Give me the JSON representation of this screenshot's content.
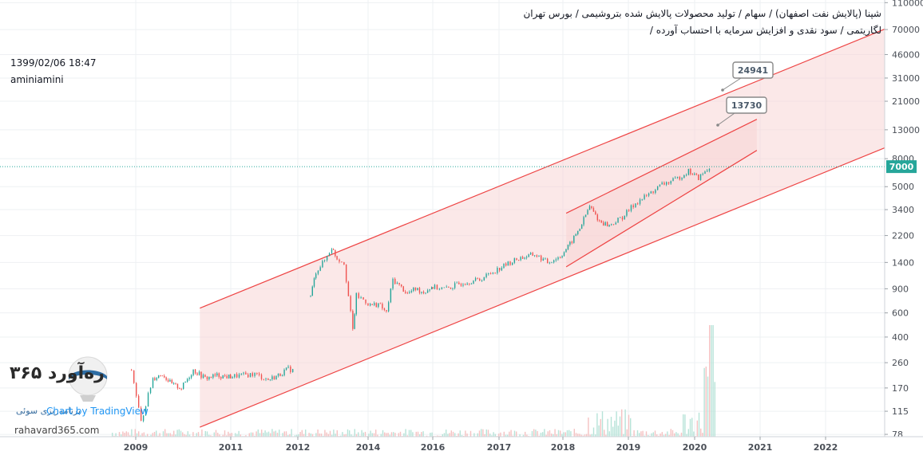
{
  "header": {
    "title_line1": "شپنا (پالایش نفت اصفهان) / سهام / تولید محصولات پالایش شده بتروشیمی / بورس تهران",
    "title_line2": "لگاریتمی / سود نقدی و افزایش سرمایه با احتساب آورده /",
    "datetime": "1399/02/06 18:47",
    "author": "aminiamini"
  },
  "watermark": {
    "brand": "۳۶۵ ره‌آورد",
    "brand_fa_sub": "برنامه‌ریزی سوئی",
    "site": "rahavard365.com",
    "tv_text": "Chart by TradingView"
  },
  "colors": {
    "background": "#ffffff",
    "grid": "#eef0f3",
    "channel_line": "#ee4444",
    "channel_fill": "#f8d5d5",
    "candle_up": "#26a69a",
    "candle_down": "#ef5350",
    "volume_up": "#b7e3d8",
    "volume_down": "#f5c2c2",
    "last_price_bg": "#26a69a",
    "last_price_line": "#26a69a"
  },
  "chart_data": {
    "type": "candlestick",
    "scale": "log",
    "x_axis_ticks": [
      "2009",
      "2011",
      "2012",
      "2014",
      "2016",
      "2017",
      "2018",
      "2019",
      "2020",
      "2021",
      "2022"
    ],
    "y_axis_ticks": [
      "110000",
      "70000",
      "46000",
      "31000",
      "21000",
      "13000",
      "8000",
      "5000",
      "3400",
      "2200",
      "1400",
      "900",
      "600",
      "400",
      "260",
      "170",
      "115",
      "78"
    ],
    "y_range": [
      75,
      115000
    ],
    "last_price": "7000",
    "targets": [
      {
        "label": "24941",
        "value": 24941
      },
      {
        "label": "13730",
        "value": 13730
      }
    ],
    "price_path": [
      [
        2008.9,
        230
      ],
      [
        2009.0,
        150
      ],
      [
        2009.1,
        95
      ],
      [
        2009.2,
        130
      ],
      [
        2009.35,
        200
      ],
      [
        2009.55,
        215
      ],
      [
        2009.75,
        180
      ],
      [
        2009.95,
        170
      ],
      [
        2010.2,
        230
      ],
      [
        2010.45,
        200
      ],
      [
        2010.7,
        210
      ],
      [
        2010.95,
        205
      ],
      [
        2011.15,
        210
      ],
      [
        2011.35,
        215
      ],
      [
        2011.55,
        195
      ],
      [
        2011.7,
        210
      ],
      [
        2011.85,
        235
      ],
      [
        2011.95,
        225
      ],
      [
        2012.35,
        800
      ],
      [
        2012.5,
        1200
      ],
      [
        2012.75,
        1450
      ],
      [
        2012.95,
        1800
      ],
      [
        2013.1,
        1500
      ],
      [
        2013.3,
        1400
      ],
      [
        2013.55,
        450
      ],
      [
        2013.65,
        800
      ],
      [
        2013.85,
        750
      ],
      [
        2014.05,
        680
      ],
      [
        2014.3,
        700
      ],
      [
        2014.55,
        600
      ],
      [
        2014.75,
        1050
      ],
      [
        2014.95,
        950
      ],
      [
        2015.2,
        830
      ],
      [
        2015.45,
        900
      ],
      [
        2015.7,
        850
      ],
      [
        2015.95,
        930
      ],
      [
        2016.2,
        900
      ],
      [
        2016.45,
        1000
      ],
      [
        2016.7,
        1050
      ],
      [
        2016.9,
        1200
      ],
      [
        2017.1,
        1350
      ],
      [
        2017.3,
        1500
      ],
      [
        2017.55,
        1600
      ],
      [
        2017.75,
        1400
      ],
      [
        2017.95,
        1550
      ],
      [
        2018.1,
        1900
      ],
      [
        2018.25,
        2500
      ],
      [
        2018.4,
        3600
      ],
      [
        2018.55,
        2800
      ],
      [
        2018.7,
        2600
      ],
      [
        2018.9,
        3000
      ],
      [
        2019.1,
        3800
      ],
      [
        2019.3,
        4400
      ],
      [
        2019.5,
        5200
      ],
      [
        2019.7,
        5600
      ],
      [
        2019.9,
        6500
      ],
      [
        2020.05,
        5800
      ],
      [
        2020.15,
        6400
      ],
      [
        2020.25,
        7000
      ]
    ],
    "channels": [
      {
        "name": "",
        "upper": [
          [
            2010.35,
            650
          ],
          [
            2022.95,
            72000
          ]
        ],
        "lower": [
          [
            2010.35,
            88
          ],
          [
            2022.95,
            9800
          ]
        ]
      },
      {
        "name": "",
        "upper": [
          [
            2018.05,
            3200
          ],
          [
            2020.95,
            15500
          ]
        ],
        "lower": [
          [
            2018.05,
            1300
          ],
          [
            2020.95,
            9200
          ]
        ]
      }
    ]
  }
}
